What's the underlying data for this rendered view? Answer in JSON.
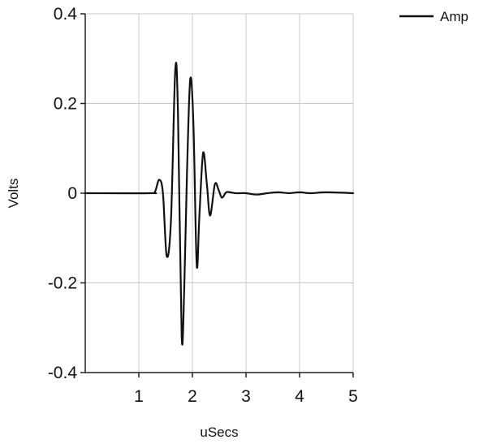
{
  "chart_data": {
    "type": "line",
    "title": "",
    "xlabel": "uSecs",
    "ylabel": "Volts",
    "xlim": [
      0,
      5
    ],
    "ylim": [
      -0.4,
      0.4
    ],
    "x_ticks": [
      1,
      2,
      3,
      4,
      5
    ],
    "y_ticks": [
      -0.4,
      -0.2,
      0,
      0.2,
      0.4
    ],
    "x_tick_labels": [
      "1",
      "2",
      "3",
      "4",
      "5"
    ],
    "y_tick_labels": [
      "-0.4",
      "-0.2",
      "0",
      "0.2",
      "0.4"
    ],
    "grid": true,
    "legend_position": "top-right",
    "colors": {
      "line": "#111111",
      "grid": "#c8c8c8",
      "axis": "#222222"
    },
    "series": [
      {
        "name": "Amp",
        "x": [
          0,
          1.2,
          1.3,
          1.38,
          1.45,
          1.52,
          1.6,
          1.68,
          1.73,
          1.8,
          1.85,
          1.9,
          1.96,
          2.02,
          2.08,
          2.13,
          2.2,
          2.27,
          2.33,
          2.42,
          2.49,
          2.55,
          2.63,
          2.7,
          2.8,
          2.9,
          3.0,
          3.2,
          3.4,
          3.6,
          3.8,
          4.0,
          4.2,
          4.5,
          5.0
        ],
        "y": [
          0,
          0,
          0.003,
          0.03,
          0.0,
          -0.14,
          -0.06,
          0.275,
          0.18,
          -0.32,
          -0.2,
          0.05,
          0.255,
          0.15,
          -0.16,
          -0.05,
          0.09,
          0.02,
          -0.05,
          0.02,
          0.007,
          -0.01,
          0.002,
          0.002,
          0,
          0,
          0,
          -0.003,
          0,
          0.002,
          0,
          0.002,
          0,
          0.002,
          0
        ]
      }
    ]
  }
}
